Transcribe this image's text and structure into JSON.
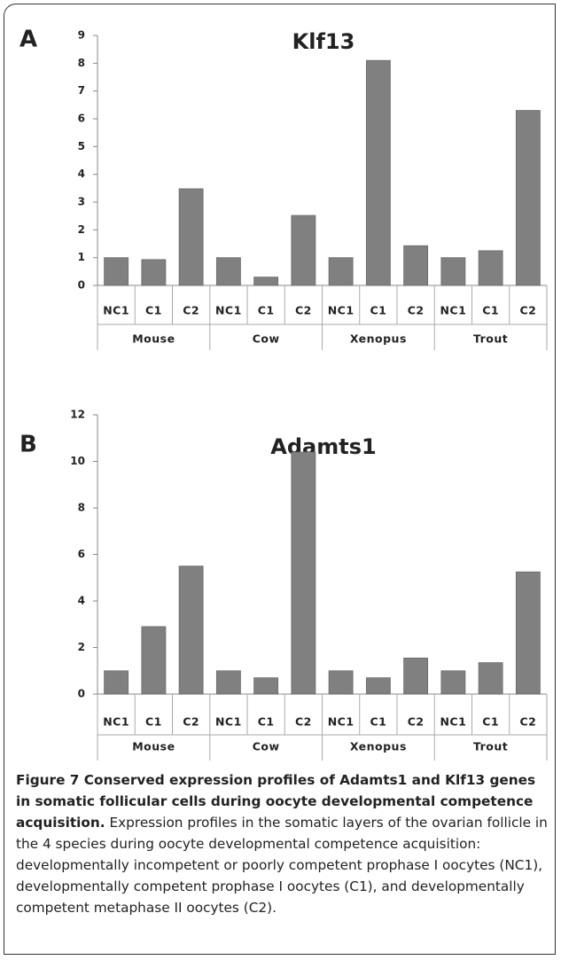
{
  "chart_data": [
    {
      "type": "bar",
      "panel": "A",
      "title": "Klf13",
      "categories": [
        "NC1",
        "C1",
        "C2",
        "NC1",
        "C1",
        "C2",
        "NC1",
        "C1",
        "C2",
        "NC1",
        "C1",
        "C2"
      ],
      "groups": [
        "Mouse",
        "Cow",
        "Xenopus",
        "Trout"
      ],
      "values": [
        1,
        0.93,
        3.48,
        1,
        0.3,
        2.52,
        1,
        8.1,
        1.43,
        1,
        1.25,
        6.3
      ],
      "color": "#808080",
      "ylim": [
        0,
        9
      ],
      "yticks": [
        0,
        1,
        2,
        3,
        4,
        5,
        6,
        7,
        8,
        9
      ]
    },
    {
      "type": "bar",
      "panel": "B",
      "title": "Adamts1",
      "categories": [
        "NC1",
        "C1",
        "C2",
        "NC1",
        "C1",
        "C2",
        "NC1",
        "C1",
        "C2",
        "NC1",
        "C1",
        "C2"
      ],
      "groups": [
        "Mouse",
        "Cow",
        "Xenopus",
        "Trout"
      ],
      "values": [
        1,
        2.9,
        5.5,
        1,
        0.7,
        10.4,
        1,
        0.7,
        1.55,
        1,
        1.35,
        5.25
      ],
      "color": "#808080",
      "ylim": [
        0,
        12
      ],
      "yticks": [
        0,
        2,
        4,
        6,
        8,
        10,
        12
      ]
    }
  ],
  "caption": {
    "title": "Figure 7 Conserved expression profiles of Adamts1 and Klf13 genes in somatic follicular cells during oocyte developmental competence acquisition.",
    "text": "Expression profiles in the somatic layers of the ovarian follicle in the 4 species during oocyte developmental competence acquisition: developmentally incompetent or poorly competent prophase I oocytes (NC1), developmentally competent prophase I oocytes (C1), and developmentally competent metaphase II oocytes (C2)."
  }
}
